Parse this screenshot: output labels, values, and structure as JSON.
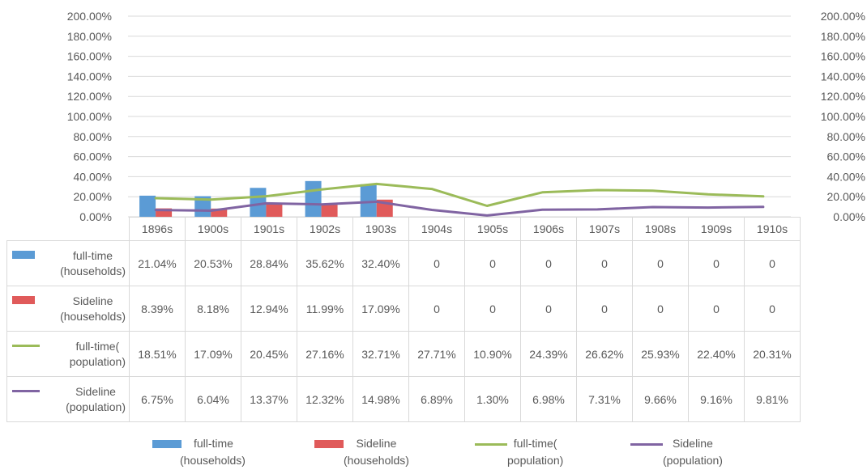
{
  "chart_data": {
    "type": "bar",
    "categories": [
      "1896s",
      "1900s",
      "1901s",
      "1902s",
      "1903s",
      "1904s",
      "1905s",
      "1906s",
      "1907s",
      "1908s",
      "1909s",
      "1910s"
    ],
    "ylim": [
      0,
      200
    ],
    "y_ticks": [
      "0.00%",
      "20.00%",
      "40.00%",
      "60.00%",
      "80.00%",
      "100.00%",
      "120.00%",
      "140.00%",
      "160.00%",
      "180.00%",
      "200.00%"
    ],
    "grid": true,
    "legend_position": "bottom",
    "series": [
      {
        "name_line1": "full-time",
        "name_line2": "(households)",
        "kind": "bar",
        "color": "#5b9bd5",
        "values": [
          21.04,
          20.53,
          28.84,
          35.62,
          32.4,
          0,
          0,
          0,
          0,
          0,
          0,
          0
        ],
        "labels": [
          "21.04%",
          "20.53%",
          "28.84%",
          "35.62%",
          "32.40%",
          "0",
          "0",
          "0",
          "0",
          "0",
          "0",
          "0"
        ]
      },
      {
        "name_line1": "Sideline",
        "name_line2": "(households)",
        "kind": "bar",
        "color": "#e05a5a",
        "values": [
          8.39,
          8.18,
          12.94,
          11.99,
          17.09,
          0,
          0,
          0,
          0,
          0,
          0,
          0
        ],
        "labels": [
          "8.39%",
          "8.18%",
          "12.94%",
          "11.99%",
          "17.09%",
          "0",
          "0",
          "0",
          "0",
          "0",
          "0",
          "0"
        ]
      },
      {
        "name_line1": "full-time(",
        "name_line2": "population)",
        "kind": "line",
        "color": "#9bbb59",
        "values": [
          18.51,
          17.09,
          20.45,
          27.16,
          32.71,
          27.71,
          10.9,
          24.39,
          26.62,
          25.93,
          22.4,
          20.31
        ],
        "labels": [
          "18.51%",
          "17.09%",
          "20.45%",
          "27.16%",
          "32.71%",
          "27.71%",
          "10.90%",
          "24.39%",
          "26.62%",
          "25.93%",
          "22.40%",
          "20.31%"
        ]
      },
      {
        "name_line1": "Sideline",
        "name_line2": "(population)",
        "kind": "line",
        "color": "#8064a2",
        "values": [
          6.75,
          6.04,
          13.37,
          12.32,
          14.98,
          6.89,
          1.3,
          6.98,
          7.31,
          9.66,
          9.16,
          9.81
        ],
        "labels": [
          "6.75%",
          "6.04%",
          "13.37%",
          "12.32%",
          "14.98%",
          "6.89%",
          "1.30%",
          "6.98%",
          "7.31%",
          "9.66%",
          "9.16%",
          "9.81%"
        ]
      }
    ]
  }
}
